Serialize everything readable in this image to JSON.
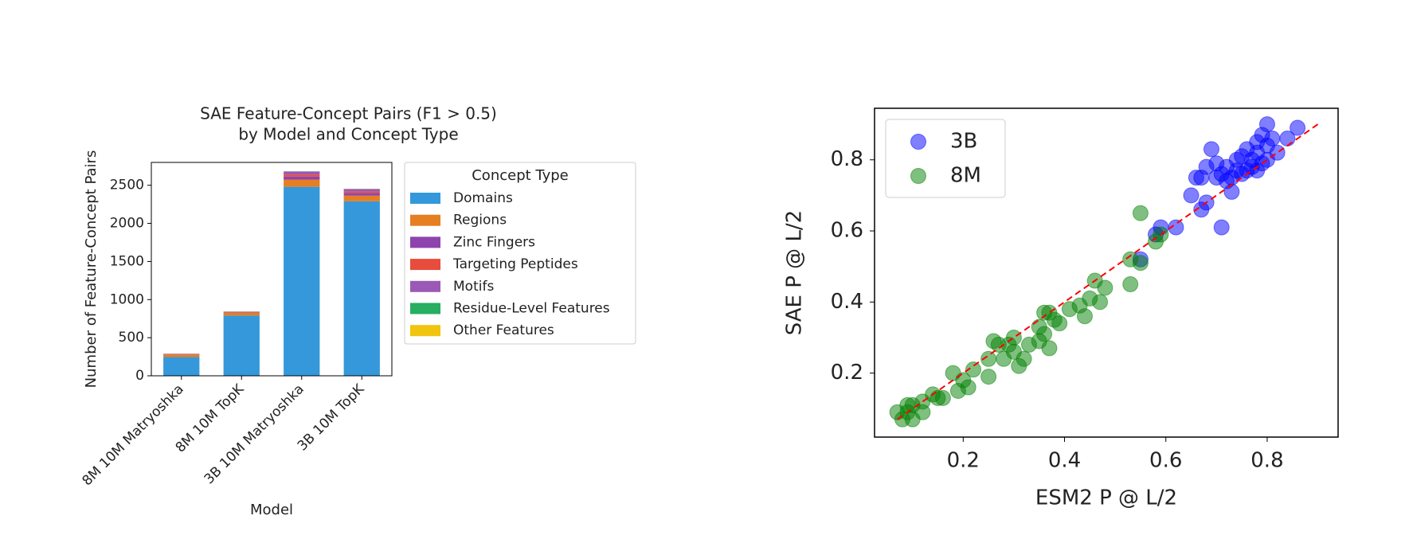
{
  "chart_data": [
    {
      "type": "bar",
      "stacked": true,
      "title": [
        "SAE Feature-Concept Pairs (F1 > 0.5)",
        "by Model and Concept Type"
      ],
      "x_label": "Model",
      "y_label": "Number of Feature-Concept Pairs",
      "categories": [
        "8M 10M Matryoshka",
        "8M 10M TopK",
        "3B 10M Matryoshka",
        "3B 10M TopK"
      ],
      "series": [
        {
          "name": "Domains",
          "color": "#3498db",
          "values": [
            245,
            790,
            2480,
            2290
          ]
        },
        {
          "name": "Regions",
          "color": "#e67e22",
          "values": [
            35,
            40,
            95,
            75
          ]
        },
        {
          "name": "Zinc Fingers",
          "color": "#8e44ad",
          "values": [
            3,
            5,
            40,
            35
          ]
        },
        {
          "name": "Targeting Peptides",
          "color": "#e74c3c",
          "values": [
            2,
            3,
            25,
            20
          ]
        },
        {
          "name": "Motifs",
          "color": "#9b59b6",
          "values": [
            5,
            5,
            40,
            30
          ]
        },
        {
          "name": "Residue-Level Features",
          "color": "#27ae60",
          "values": [
            1,
            1,
            2,
            2
          ]
        },
        {
          "name": "Other Features",
          "color": "#f1c40f",
          "values": [
            1,
            1,
            1,
            1
          ]
        }
      ],
      "ylim": [
        0,
        2800
      ],
      "yticks": [
        0,
        500,
        1000,
        1500,
        2000,
        2500
      ],
      "legend_title": "Concept Type",
      "legend": "outside right"
    },
    {
      "type": "scatter",
      "x_label": "ESM2 P @ L/2",
      "y_label": "SAE P @ L/2",
      "xlim": [
        0.025,
        0.94
      ],
      "ylim": [
        0.02,
        0.945
      ],
      "xticks": [
        0.2,
        0.4,
        0.6,
        0.8
      ],
      "yticks": [
        0.2,
        0.4,
        0.6,
        0.8
      ],
      "legend": "upper left",
      "diagonal": {
        "x": [
          0.07,
          0.9
        ],
        "y": [
          0.07,
          0.9
        ],
        "color": "red"
      },
      "series": [
        {
          "name": "3B",
          "color": "blue",
          "x": [
            0.55,
            0.58,
            0.59,
            0.62,
            0.65,
            0.66,
            0.67,
            0.67,
            0.68,
            0.68,
            0.69,
            0.7,
            0.7,
            0.71,
            0.71,
            0.72,
            0.73,
            0.73,
            0.74,
            0.75,
            0.75,
            0.76,
            0.76,
            0.77,
            0.77,
            0.78,
            0.78,
            0.78,
            0.79,
            0.79,
            0.8,
            0.8,
            0.8,
            0.81,
            0.82,
            0.84,
            0.86,
            0.72,
            0.74
          ],
          "y": [
            0.52,
            0.59,
            0.61,
            0.61,
            0.7,
            0.75,
            0.66,
            0.75,
            0.68,
            0.78,
            0.83,
            0.75,
            0.79,
            0.61,
            0.76,
            0.78,
            0.71,
            0.75,
            0.8,
            0.76,
            0.81,
            0.77,
            0.83,
            0.78,
            0.8,
            0.77,
            0.85,
            0.82,
            0.87,
            0.79,
            0.84,
            0.9,
            0.8,
            0.86,
            0.82,
            0.86,
            0.89,
            0.74,
            0.77
          ]
        },
        {
          "name": "8M",
          "color": "green",
          "x": [
            0.07,
            0.08,
            0.09,
            0.09,
            0.1,
            0.1,
            0.12,
            0.12,
            0.14,
            0.15,
            0.16,
            0.18,
            0.19,
            0.2,
            0.21,
            0.22,
            0.25,
            0.25,
            0.26,
            0.27,
            0.28,
            0.29,
            0.3,
            0.3,
            0.31,
            0.32,
            0.33,
            0.35,
            0.35,
            0.36,
            0.36,
            0.37,
            0.37,
            0.38,
            0.39,
            0.41,
            0.43,
            0.44,
            0.45,
            0.46,
            0.47,
            0.48,
            0.53,
            0.53,
            0.55,
            0.55,
            0.58,
            0.59
          ],
          "y": [
            0.09,
            0.07,
            0.11,
            0.09,
            0.07,
            0.11,
            0.09,
            0.12,
            0.14,
            0.13,
            0.13,
            0.2,
            0.15,
            0.18,
            0.16,
            0.21,
            0.19,
            0.24,
            0.29,
            0.28,
            0.24,
            0.28,
            0.3,
            0.26,
            0.22,
            0.24,
            0.28,
            0.29,
            0.33,
            0.31,
            0.37,
            0.37,
            0.27,
            0.35,
            0.34,
            0.38,
            0.39,
            0.36,
            0.41,
            0.46,
            0.4,
            0.44,
            0.52,
            0.45,
            0.65,
            0.51,
            0.57,
            0.59
          ]
        }
      ]
    }
  ]
}
